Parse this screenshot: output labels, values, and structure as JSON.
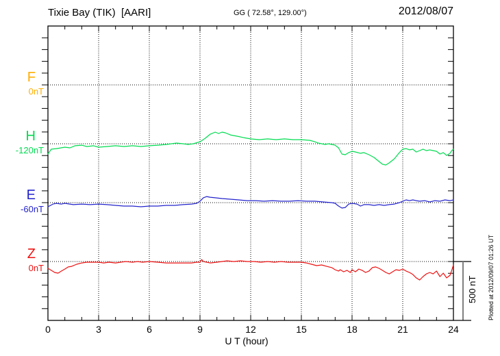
{
  "header": {
    "title": "Tixie Bay (TIK)  [AARI]",
    "coordinates": "GG ( 72.58°, 129.00°)",
    "date": "2012/08/07"
  },
  "scale_bar": {
    "label": "500 nT",
    "nT": 500
  },
  "footer_note": "Plotted at 2012/09/07 01:26 UT",
  "colors": {
    "frame": "#000000",
    "grid": "#000000",
    "scale_bar_line": "#808080",
    "background": "#ffffff"
  },
  "chart_data": {
    "type": "line",
    "title": "Tixie Bay (TIK) [AARI] magnetogram, 2012/08/07",
    "xlabel": "U T (hour)",
    "ylabel": "nT",
    "x_range": [
      0,
      24
    ],
    "x_major_ticks": [
      0,
      3,
      6,
      9,
      12,
      15,
      18,
      21,
      24
    ],
    "x_minor_tick_step_hours": 1,
    "nT_per_minor_tick": 100,
    "scale_bar_nT": 500,
    "grid": "dotted",
    "series": [
      {
        "name": "F",
        "baseline_label": "0nT",
        "baseline_nT": 0,
        "color": "#FFAE00",
        "points": []
      },
      {
        "name": "H",
        "baseline_label": "-120nT",
        "baseline_nT": -120,
        "color": "#00DC50",
        "points": [
          [
            0,
            -207
          ],
          [
            0.2,
            -166
          ],
          [
            0.5,
            -161
          ],
          [
            1,
            -149
          ],
          [
            1.3,
            -155
          ],
          [
            1.6,
            -137
          ],
          [
            2,
            -132
          ],
          [
            2.3,
            -143
          ],
          [
            2.7,
            -137
          ],
          [
            3,
            -149
          ],
          [
            3.5,
            -143
          ],
          [
            4,
            -137
          ],
          [
            4.5,
            -143
          ],
          [
            5,
            -137
          ],
          [
            5.5,
            -143
          ],
          [
            6,
            -137
          ],
          [
            6.5,
            -132
          ],
          [
            7,
            -126
          ],
          [
            7.3,
            -120
          ],
          [
            7.6,
            -114
          ],
          [
            8,
            -120
          ],
          [
            8.3,
            -126
          ],
          [
            8.6,
            -120
          ],
          [
            9,
            -103
          ],
          [
            9.3,
            -74
          ],
          [
            9.6,
            -39
          ],
          [
            9.9,
            -21
          ],
          [
            10.1,
            -33
          ],
          [
            10.3,
            -21
          ],
          [
            10.5,
            -27
          ],
          [
            10.8,
            -45
          ],
          [
            11.2,
            -56
          ],
          [
            11.6,
            -68
          ],
          [
            12,
            -79
          ],
          [
            12.5,
            -85
          ],
          [
            13,
            -79
          ],
          [
            13.5,
            -85
          ],
          [
            14,
            -79
          ],
          [
            14.5,
            -85
          ],
          [
            15,
            -85
          ],
          [
            15.5,
            -91
          ],
          [
            15.8,
            -103
          ],
          [
            16,
            -114
          ],
          [
            16.2,
            -120
          ],
          [
            16.4,
            -126
          ],
          [
            16.6,
            -120
          ],
          [
            16.8,
            -126
          ],
          [
            17,
            -132
          ],
          [
            17.2,
            -155
          ],
          [
            17.4,
            -207
          ],
          [
            17.6,
            -213
          ],
          [
            17.8,
            -195
          ],
          [
            18,
            -184
          ],
          [
            18.2,
            -190
          ],
          [
            18.5,
            -201
          ],
          [
            18.7,
            -195
          ],
          [
            19,
            -213
          ],
          [
            19.3,
            -236
          ],
          [
            19.6,
            -271
          ],
          [
            19.8,
            -294
          ],
          [
            20,
            -300
          ],
          [
            20.2,
            -282
          ],
          [
            20.5,
            -248
          ],
          [
            20.8,
            -195
          ],
          [
            21,
            -166
          ],
          [
            21.2,
            -161
          ],
          [
            21.4,
            -172
          ],
          [
            21.6,
            -166
          ],
          [
            21.8,
            -190
          ],
          [
            22,
            -178
          ],
          [
            22.2,
            -166
          ],
          [
            22.4,
            -178
          ],
          [
            22.6,
            -172
          ],
          [
            22.8,
            -178
          ],
          [
            23,
            -184
          ],
          [
            23.2,
            -207
          ],
          [
            23.4,
            -195
          ],
          [
            23.6,
            -219
          ],
          [
            23.8,
            -201
          ],
          [
            23.9,
            -178
          ],
          [
            24,
            -166
          ]
        ]
      },
      {
        "name": "E",
        "baseline_label": "-60nT",
        "baseline_nT": -60,
        "color": "#2222CC",
        "points": [
          [
            0,
            -95
          ],
          [
            0.3,
            -72
          ],
          [
            0.5,
            -66
          ],
          [
            0.8,
            -72
          ],
          [
            1,
            -66
          ],
          [
            1.5,
            -77
          ],
          [
            2,
            -72
          ],
          [
            2.5,
            -77
          ],
          [
            3,
            -72
          ],
          [
            3.5,
            -77
          ],
          [
            4,
            -83
          ],
          [
            4.5,
            -89
          ],
          [
            5,
            -89
          ],
          [
            5.5,
            -95
          ],
          [
            6,
            -89
          ],
          [
            6.5,
            -89
          ],
          [
            7,
            -83
          ],
          [
            7.5,
            -83
          ],
          [
            8,
            -77
          ],
          [
            8.5,
            -72
          ],
          [
            8.8,
            -66
          ],
          [
            9,
            -48
          ],
          [
            9.2,
            -19
          ],
          [
            9.4,
            -8
          ],
          [
            9.6,
            -14
          ],
          [
            9.9,
            -19
          ],
          [
            10.3,
            -25
          ],
          [
            10.8,
            -31
          ],
          [
            11.3,
            -37
          ],
          [
            11.8,
            -43
          ],
          [
            12.3,
            -43
          ],
          [
            12.8,
            -48
          ],
          [
            13.3,
            -43
          ],
          [
            13.8,
            -48
          ],
          [
            14.3,
            -48
          ],
          [
            14.8,
            -43
          ],
          [
            15.3,
            -48
          ],
          [
            15.8,
            -48
          ],
          [
            16.3,
            -54
          ],
          [
            16.8,
            -60
          ],
          [
            17,
            -66
          ],
          [
            17.2,
            -89
          ],
          [
            17.4,
            -106
          ],
          [
            17.6,
            -101
          ],
          [
            17.8,
            -72
          ],
          [
            18,
            -66
          ],
          [
            18.3,
            -72
          ],
          [
            18.5,
            -89
          ],
          [
            18.7,
            -77
          ],
          [
            19,
            -77
          ],
          [
            19.3,
            -83
          ],
          [
            19.6,
            -77
          ],
          [
            19.9,
            -83
          ],
          [
            20.2,
            -77
          ],
          [
            20.5,
            -72
          ],
          [
            20.8,
            -60
          ],
          [
            21,
            -48
          ],
          [
            21.2,
            -37
          ],
          [
            21.4,
            -43
          ],
          [
            21.6,
            -37
          ],
          [
            21.8,
            -43
          ],
          [
            22,
            -48
          ],
          [
            22.3,
            -43
          ],
          [
            22.6,
            -54
          ],
          [
            22.9,
            -43
          ],
          [
            23.2,
            -48
          ],
          [
            23.5,
            -37
          ],
          [
            23.8,
            -43
          ],
          [
            24,
            -37
          ]
        ]
      },
      {
        "name": "Z",
        "baseline_label": "0nT",
        "baseline_nT": 0,
        "color": "#EE1111",
        "points": [
          [
            0,
            -58
          ],
          [
            0.2,
            -75
          ],
          [
            0.4,
            -93
          ],
          [
            0.6,
            -99
          ],
          [
            0.8,
            -81
          ],
          [
            1,
            -64
          ],
          [
            1.2,
            -46
          ],
          [
            1.4,
            -41
          ],
          [
            1.7,
            -23
          ],
          [
            2,
            -12
          ],
          [
            2.3,
            -6
          ],
          [
            2.6,
            -6
          ],
          [
            3,
            -6
          ],
          [
            3.3,
            -12
          ],
          [
            3.6,
            -6
          ],
          [
            4,
            -12
          ],
          [
            4.3,
            -6
          ],
          [
            4.6,
            0
          ],
          [
            5,
            -6
          ],
          [
            5.3,
            0
          ],
          [
            5.6,
            -6
          ],
          [
            6,
            0
          ],
          [
            6.5,
            -6
          ],
          [
            7,
            -12
          ],
          [
            7.5,
            -12
          ],
          [
            8,
            -12
          ],
          [
            8.5,
            -12
          ],
          [
            8.8,
            -6
          ],
          [
            9,
            -6
          ],
          [
            9.1,
            17
          ],
          [
            9.2,
            0
          ],
          [
            9.4,
            -6
          ],
          [
            9.6,
            -12
          ],
          [
            10,
            -6
          ],
          [
            10.3,
            0
          ],
          [
            10.6,
            6
          ],
          [
            11,
            0
          ],
          [
            11.4,
            6
          ],
          [
            11.8,
            0
          ],
          [
            12.2,
            0
          ],
          [
            12.6,
            -6
          ],
          [
            13,
            0
          ],
          [
            13.4,
            -6
          ],
          [
            13.8,
            0
          ],
          [
            14.2,
            -6
          ],
          [
            14.6,
            -6
          ],
          [
            15,
            -6
          ],
          [
            15.3,
            -12
          ],
          [
            15.6,
            -23
          ],
          [
            15.9,
            -35
          ],
          [
            16.2,
            -29
          ],
          [
            16.5,
            -41
          ],
          [
            16.8,
            -52
          ],
          [
            17,
            -70
          ],
          [
            17.2,
            -81
          ],
          [
            17.3,
            -70
          ],
          [
            17.5,
            -87
          ],
          [
            17.7,
            -75
          ],
          [
            17.9,
            -93
          ],
          [
            18,
            -70
          ],
          [
            18.2,
            -87
          ],
          [
            18.4,
            -64
          ],
          [
            18.6,
            -75
          ],
          [
            18.8,
            -93
          ],
          [
            19,
            -81
          ],
          [
            19.2,
            -52
          ],
          [
            19.4,
            -46
          ],
          [
            19.6,
            -58
          ],
          [
            19.8,
            -75
          ],
          [
            20,
            -93
          ],
          [
            20.2,
            -105
          ],
          [
            20.4,
            -87
          ],
          [
            20.6,
            -70
          ],
          [
            20.8,
            -75
          ],
          [
            21,
            -64
          ],
          [
            21.2,
            -81
          ],
          [
            21.4,
            -93
          ],
          [
            21.6,
            -110
          ],
          [
            21.8,
            -139
          ],
          [
            22,
            -157
          ],
          [
            22.2,
            -128
          ],
          [
            22.4,
            -105
          ],
          [
            22.6,
            -93
          ],
          [
            22.8,
            -105
          ],
          [
            23,
            -81
          ],
          [
            23.2,
            -128
          ],
          [
            23.4,
            -99
          ],
          [
            23.6,
            -139
          ],
          [
            23.8,
            -116
          ],
          [
            23.9,
            -75
          ],
          [
            24,
            -29
          ]
        ]
      }
    ]
  }
}
